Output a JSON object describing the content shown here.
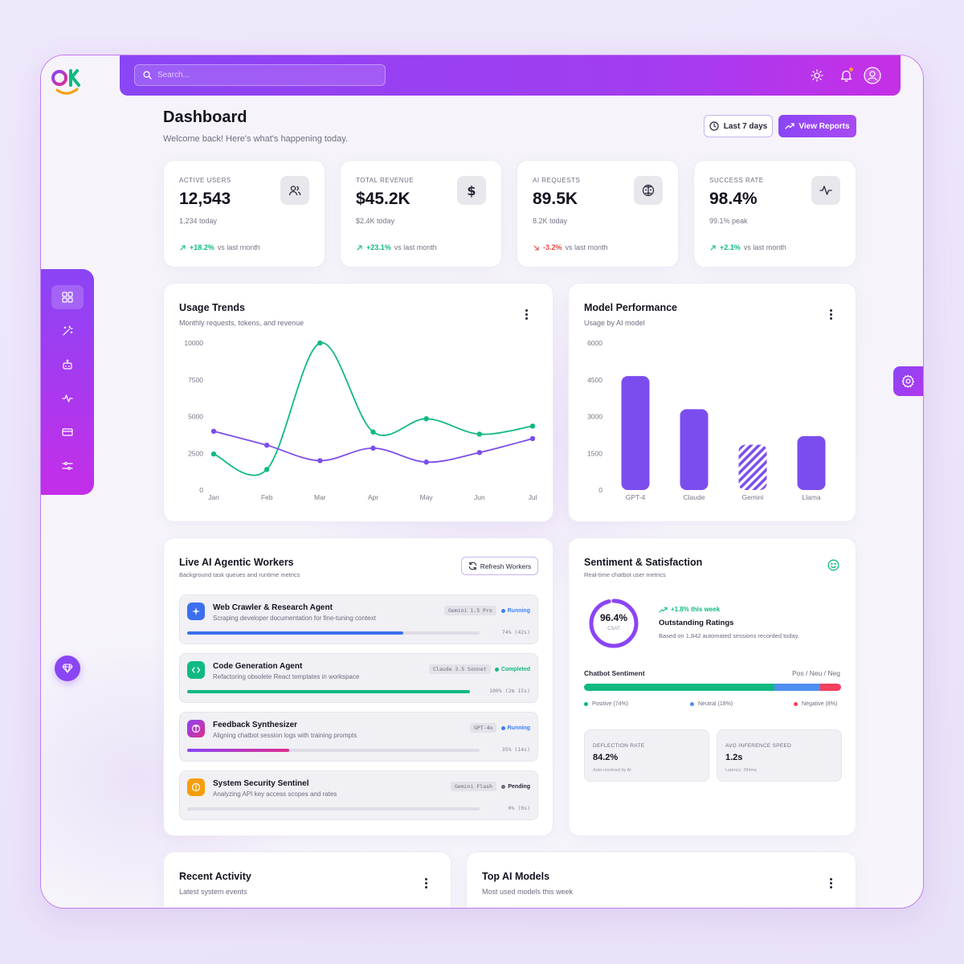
{
  "logo": {
    "text": "OK"
  },
  "search": {
    "placeholder": "Search..."
  },
  "header": {
    "title": "Dashboard",
    "subtitle": "Welcome back! Here's what's happening today.",
    "range_label": "Last 7 days",
    "reports_label": "View Reports"
  },
  "stats": [
    {
      "label": "ACTIVE USERS",
      "value": "12,543",
      "sub": "1,234 today",
      "trend": "+18.2%",
      "trend_text": "vs last month",
      "icon": "users-icon",
      "direction": "up"
    },
    {
      "label": "TOTAL REVENUE",
      "value": "$45.2K",
      "sub": "$2.4K today",
      "trend": "+23.1%",
      "trend_text": "vs last month",
      "icon": "dollar-icon",
      "direction": "up"
    },
    {
      "label": "AI REQUESTS",
      "value": "89.5K",
      "sub": "8.2K today",
      "trend": "-3.2%",
      "trend_text": "vs last month",
      "icon": "brain-icon",
      "direction": "down"
    },
    {
      "label": "SUCCESS RATE",
      "value": "98.4%",
      "sub": "99.1% peak",
      "trend": "+2.1%",
      "trend_text": "vs last month",
      "icon": "activity-icon",
      "direction": "up"
    }
  ],
  "usage": {
    "title": "Usage Trends",
    "subtitle": "Monthly requests, tokens, and revenue"
  },
  "models": {
    "title": "Model Performance",
    "subtitle": "Usage by AI model"
  },
  "chart_data": [
    {
      "type": "line",
      "title": "Usage Trends",
      "x": [
        "Jan",
        "Feb",
        "Mar",
        "Apr",
        "May",
        "Jun",
        "Jul"
      ],
      "yticks": [
        "10000",
        "7500",
        "5000",
        "2500",
        "0"
      ],
      "ylim": [
        0,
        10000
      ],
      "series": [
        {
          "color": "#10b981",
          "values": [
            2450,
            1400,
            10000,
            3950,
            4850,
            3800,
            4350
          ]
        },
        {
          "color": "#7c4dee",
          "values": [
            4000,
            3050,
            2000,
            2850,
            1900,
            2550,
            3500
          ]
        }
      ]
    },
    {
      "type": "bar",
      "title": "Model Performance",
      "categories": [
        "GPT-4",
        "Claude",
        "Gemini",
        "Llama"
      ],
      "values": [
        4650,
        3300,
        1850,
        2200
      ],
      "yticks": [
        "6000",
        "4500",
        "3000",
        "1500",
        "0"
      ],
      "ylim": [
        0,
        6000
      ]
    }
  ],
  "workers": {
    "title": "Live AI Agentic Workers",
    "subtitle": "Background task queues and runtime metrics",
    "refresh_label": "Refresh Workers",
    "items": [
      {
        "name": "Web Crawler & Research Agent",
        "desc": "Scraping developer documentation for fine-tuning context",
        "model": "Gemini 1.5 Pro",
        "status": "Running",
        "status_color": "#3b82f6",
        "progress": 74,
        "pct": "74%",
        "time": "(42s)",
        "icon": "sparkle-icon",
        "icon_color": "#3b6fee",
        "bar": "#3b6fee"
      },
      {
        "name": "Code Generation Agent",
        "desc": "Refactoring obsolete React templates in workspace",
        "model": "Claude 3.5 Sonnet",
        "status": "Completed",
        "status_color": "#10b981",
        "progress": 100,
        "pct": "100%",
        "time": "(2m 15s)",
        "icon": "code-icon",
        "icon_color": "#10b981",
        "bar": "#10b981"
      },
      {
        "name": "Feedback Synthesizer",
        "desc": "Aligning chatbot session logs with training prompts",
        "model": "GPT-4o",
        "status": "Running",
        "status_color": "#3b82f6",
        "progress": 35,
        "pct": "35%",
        "time": "(14s)",
        "icon": "brain-icon",
        "icon_color": "#c43cdf",
        "bar": "#c43cdf"
      },
      {
        "name": "System Security Sentinel",
        "desc": "Analyzing API key access scopes and rates",
        "model": "Gemini Flash",
        "status": "Pending",
        "status_color": "#6b6b7b",
        "progress": 0,
        "pct": "0%",
        "time": "(0s)",
        "icon": "alert-icon",
        "icon_color": "#f59e0b",
        "bar": "#9a97a7"
      }
    ]
  },
  "sentiment": {
    "title": "Sentiment & Satisfaction",
    "subtitle": "Real-time chatbot user metrics",
    "csat_value": "96.4%",
    "csat_label": "CSAT",
    "csat_progress": 0.964,
    "trend": "+1.8% this week",
    "rating_title": "Outstanding Ratings",
    "rating_desc": "Based on 1,842 automated sessions recorded today.",
    "bar_label": "Chatbot Sentiment",
    "bar_right": "Pos / Neu / Neg",
    "positive": {
      "label": "Positive (74%)",
      "value": 74,
      "color": "#10b981"
    },
    "neutral": {
      "label": "Neutral (18%)",
      "value": 18,
      "color": "#4f8ff0"
    },
    "negative": {
      "label": "Negative (8%)",
      "value": 8,
      "color": "#f43f5e"
    },
    "deflection": {
      "label": "DEFLECTION RATE",
      "value": "84.2%",
      "sub": "Auto-resolved by AI"
    },
    "inference": {
      "label": "AVG INFERENCE SPEED",
      "value": "1.2s",
      "sub": "Latency: 284ms"
    }
  },
  "recent": {
    "title": "Recent Activity",
    "subtitle": "Latest system events"
  },
  "top_models": {
    "title": "Top AI Models",
    "subtitle": "Most used models this week"
  }
}
